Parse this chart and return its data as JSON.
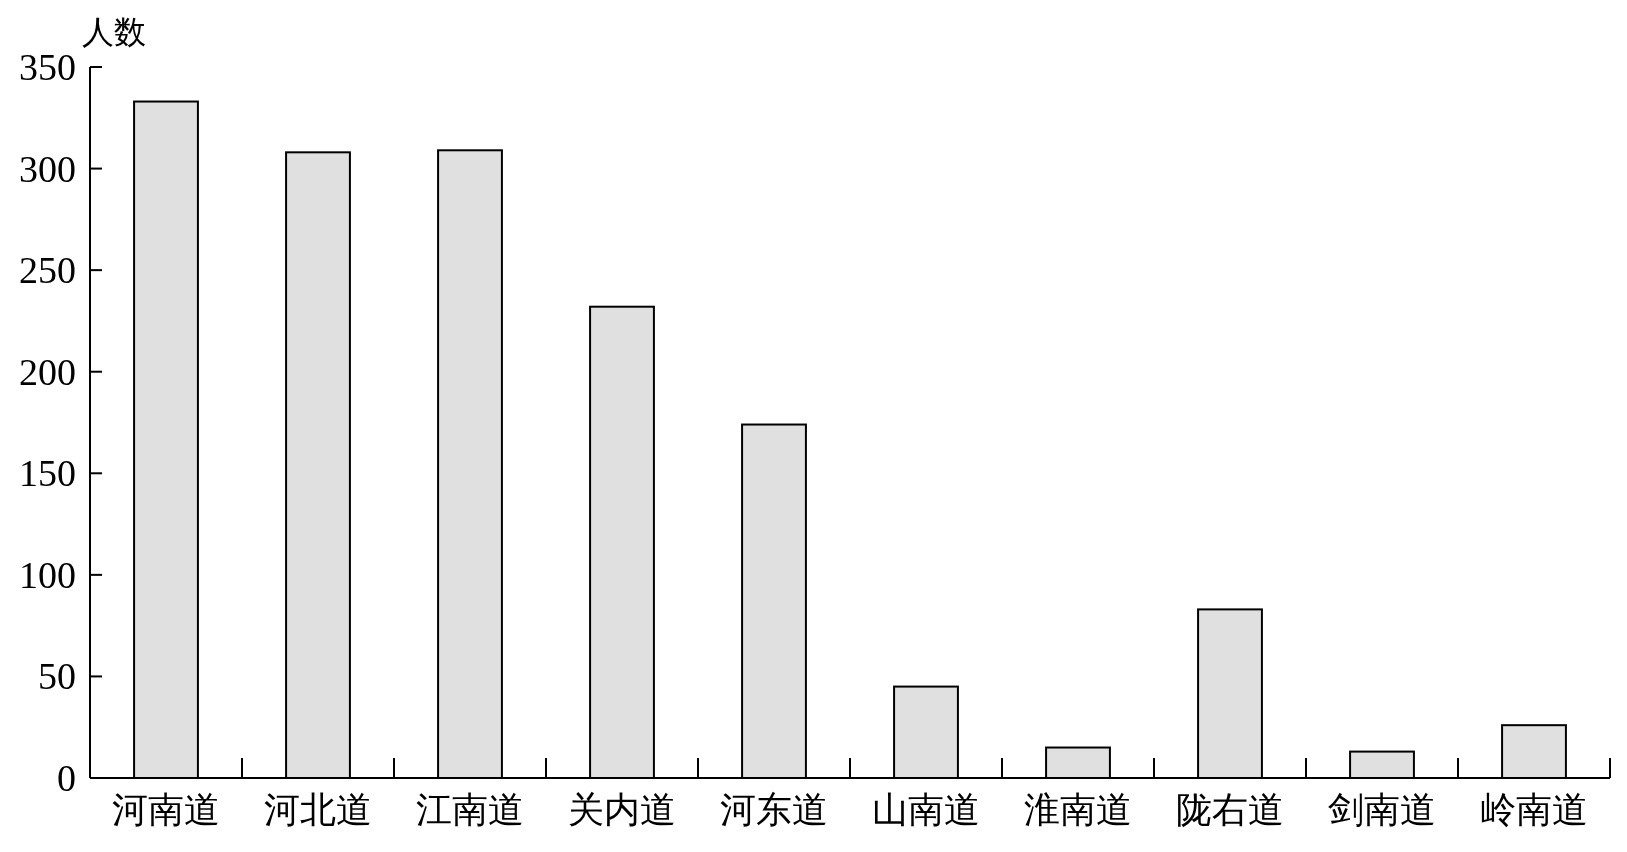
{
  "chart_data": {
    "type": "bar",
    "ylabel": "人数",
    "categories": [
      "河南道",
      "河北道",
      "江南道",
      "关内道",
      "河东道",
      "山南道",
      "淮南道",
      "陇右道",
      "剑南道",
      "岭南道"
    ],
    "values": [
      333,
      308,
      309,
      232,
      174,
      45,
      15,
      83,
      13,
      26
    ],
    "color": "#e0e0e0",
    "ylim": [
      0,
      350
    ],
    "yticks": [
      0,
      50,
      100,
      150,
      200,
      250,
      300,
      350
    ],
    "grid": false
  }
}
